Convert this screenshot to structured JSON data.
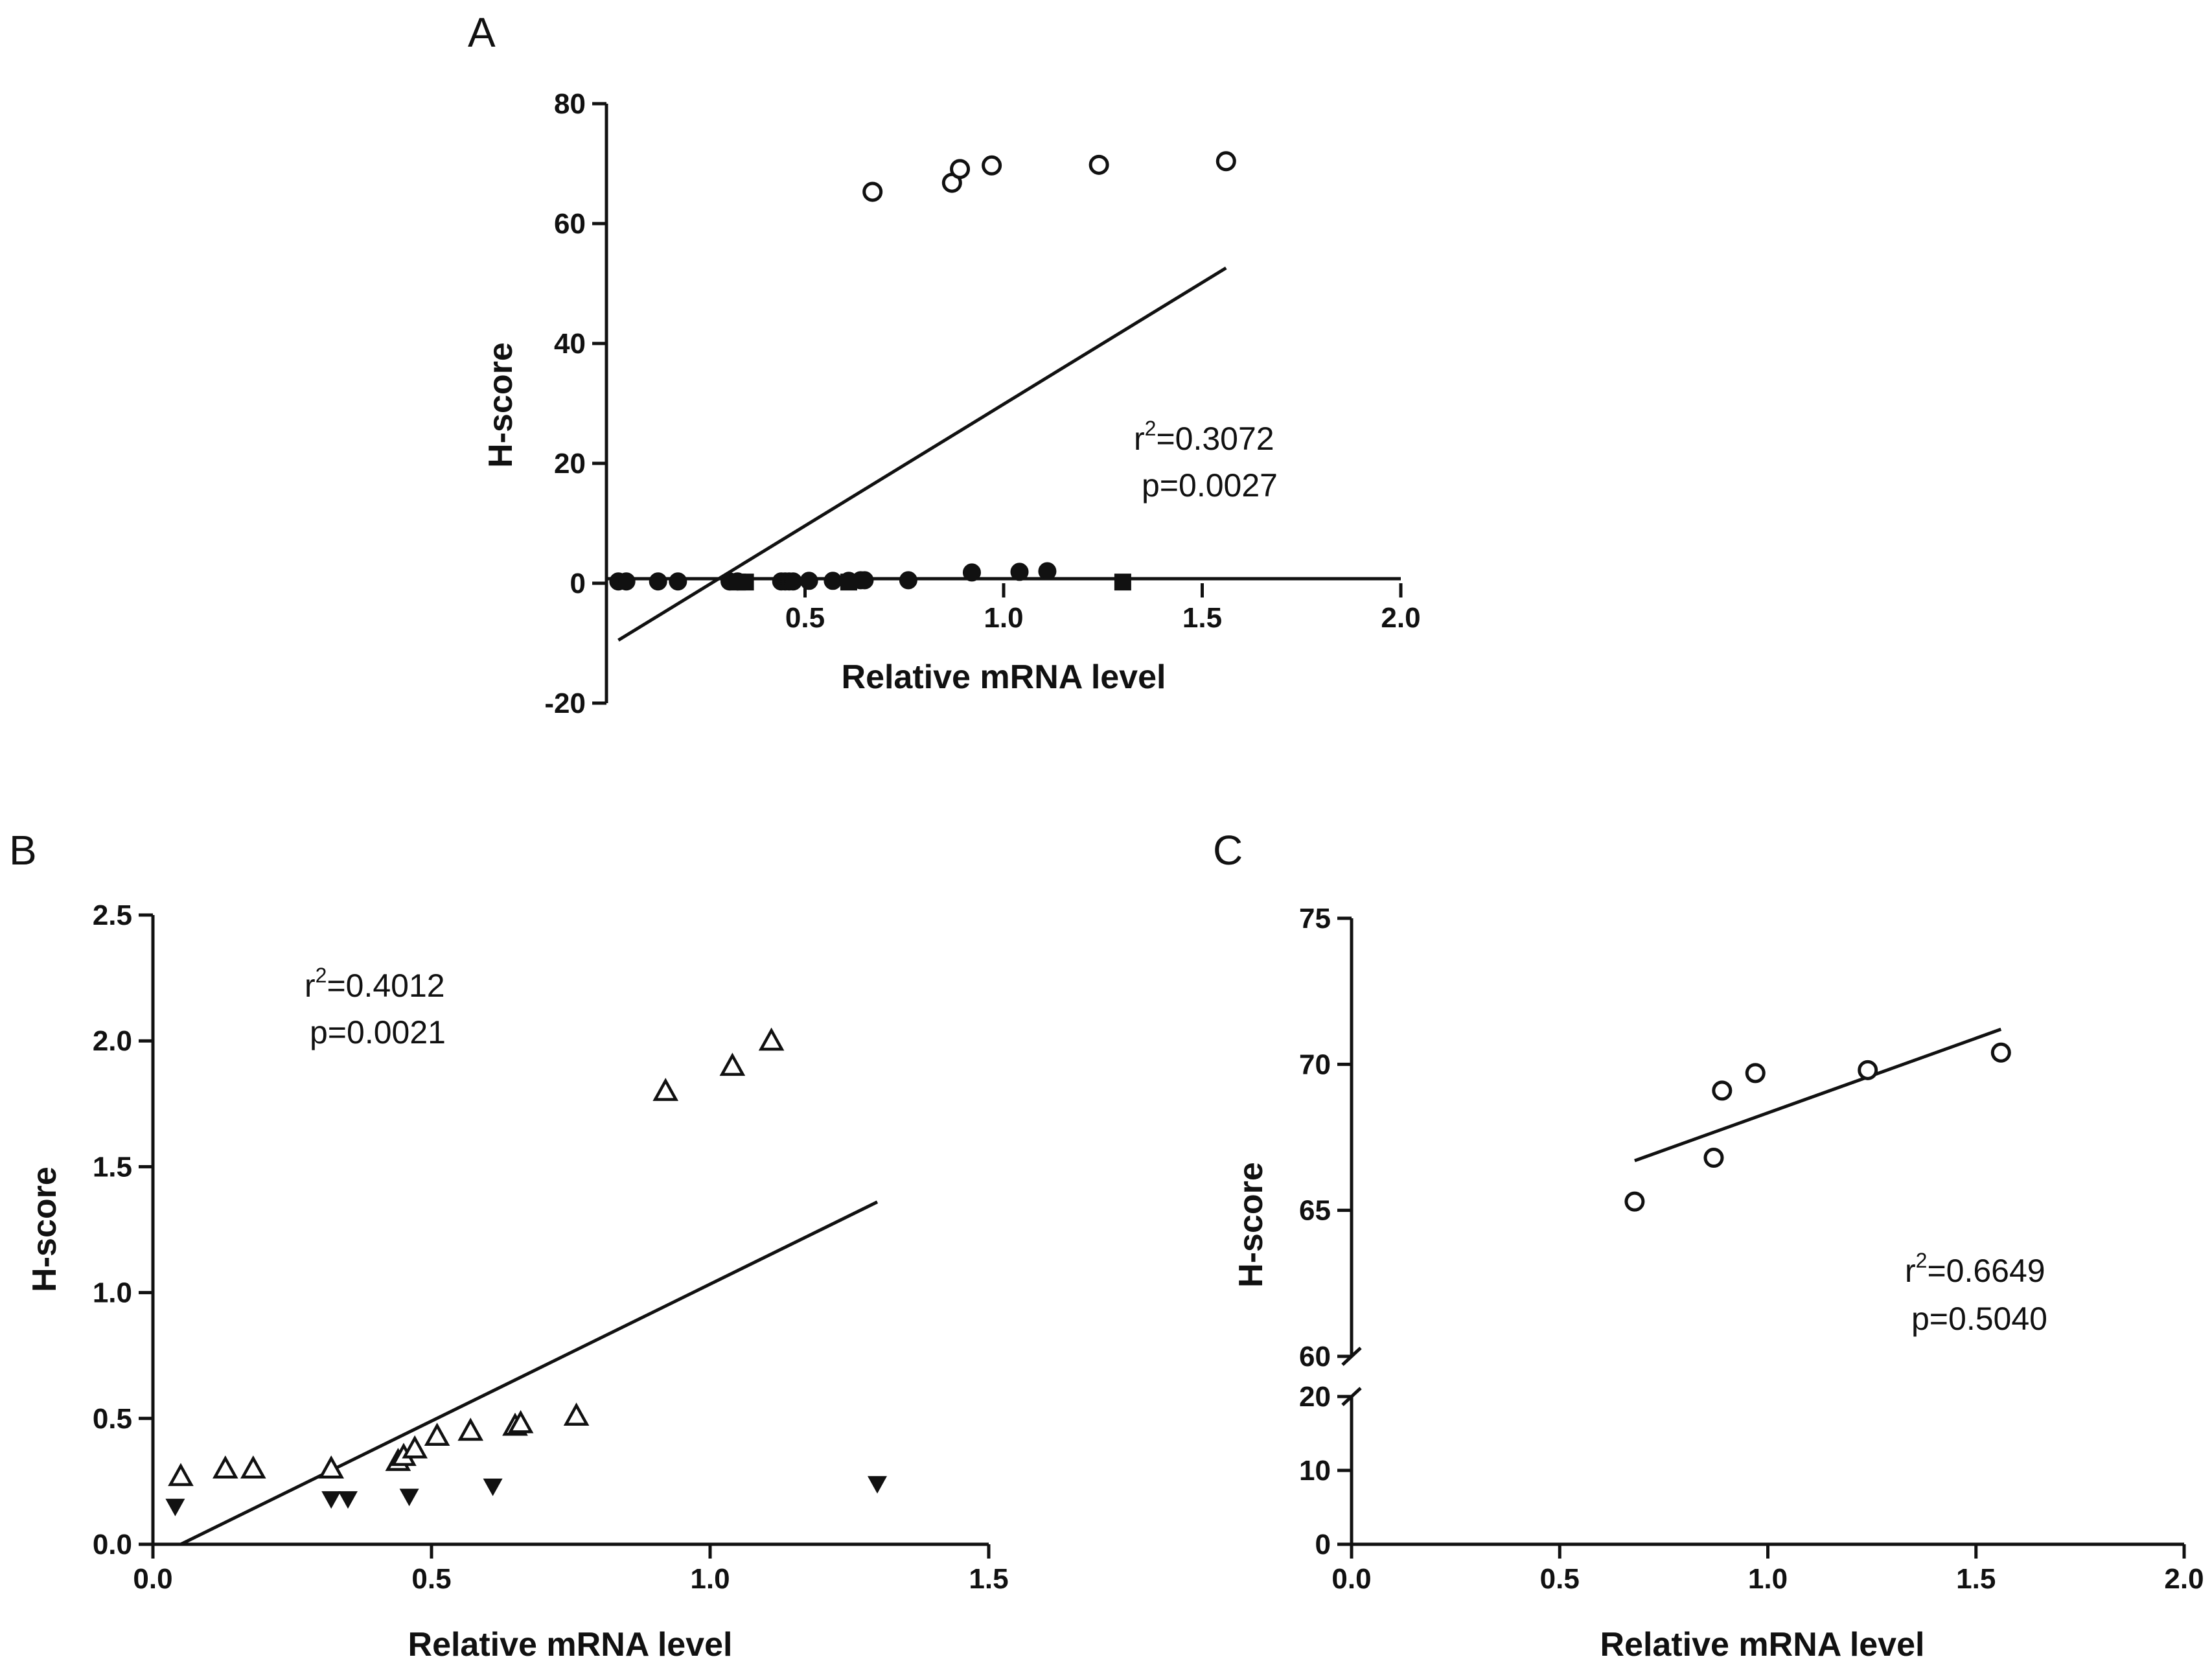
{
  "chart_data": [
    {
      "panel": "A",
      "type": "scatter",
      "xlabel": "Relative mRNA level",
      "ylabel": "H-score",
      "xlim": [
        0,
        2.0
      ],
      "ylim": [
        -20,
        80
      ],
      "xticks": [
        {
          "v": 0.5,
          "label": "0.5"
        },
        {
          "v": 1.0,
          "label": "1.0"
        },
        {
          "v": 1.5,
          "label": "1.5"
        },
        {
          "v": 2.0,
          "label": "2.0"
        }
      ],
      "yticks": [
        {
          "v": -20,
          "label": "-20"
        },
        {
          "v": 0,
          "label": "0"
        },
        {
          "v": 20,
          "label": "20"
        },
        {
          "v": 40,
          "label": "40"
        },
        {
          "v": 60,
          "label": "60"
        },
        {
          "v": 80,
          "label": "80"
        }
      ],
      "series": [
        {
          "name": "open circles",
          "marker": "open-circle",
          "x": [
            0.67,
            0.87,
            0.89,
            0.97,
            1.24,
            1.56
          ],
          "y": [
            65.3,
            66.8,
            69.1,
            69.7,
            69.8,
            70.4
          ]
        },
        {
          "name": "filled circles",
          "marker": "filled-circle",
          "x": [
            0.03,
            0.05,
            0.13,
            0.18,
            0.31,
            0.33,
            0.44,
            0.45,
            0.46,
            0.47,
            0.51,
            0.57,
            0.61,
            0.64,
            0.65,
            0.76,
            0.92,
            1.04,
            1.11
          ],
          "y": [
            0.3,
            0.3,
            0.3,
            0.3,
            0.3,
            0.3,
            0.3,
            0.3,
            0.3,
            0.3,
            0.4,
            0.4,
            0.4,
            0.5,
            0.5,
            0.5,
            1.8,
            1.9,
            2.0
          ]
        },
        {
          "name": "filled squares",
          "marker": "filled-square",
          "x": [
            0.33,
            0.35,
            0.61,
            1.3
          ],
          "y": [
            0.2,
            0.2,
            0.2,
            0.2
          ]
        }
      ],
      "fit": {
        "x": [
          0.03,
          1.56
        ],
        "y": [
          -9.5,
          52.6
        ]
      },
      "stats": {
        "r2_prefix": "r",
        "r2_sup": "2",
        "r2_value": "=0.3072",
        "p": "p=0.0027"
      }
    },
    {
      "panel": "B",
      "type": "scatter",
      "xlabel": "Relative mRNA level",
      "ylabel": "H-score",
      "xlim": [
        0,
        1.5
      ],
      "ylim": [
        0,
        2.5
      ],
      "xticks": [
        {
          "v": 0.0,
          "label": "0.0"
        },
        {
          "v": 0.5,
          "label": "0.5"
        },
        {
          "v": 1.0,
          "label": "1.0"
        },
        {
          "v": 1.5,
          "label": "1.5"
        }
      ],
      "yticks": [
        {
          "v": 0.0,
          "label": "0.0"
        },
        {
          "v": 0.5,
          "label": "0.5"
        },
        {
          "v": 1.0,
          "label": "1.0"
        },
        {
          "v": 1.5,
          "label": "1.5"
        },
        {
          "v": 2.0,
          "label": "2.0"
        },
        {
          "v": 2.5,
          "label": "2.5"
        }
      ],
      "series": [
        {
          "name": "open triangles",
          "marker": "open-triangle",
          "x": [
            0.05,
            0.13,
            0.18,
            0.32,
            0.44,
            0.45,
            0.47,
            0.51,
            0.57,
            0.65,
            0.66,
            0.76,
            0.92,
            1.04,
            1.11
          ],
          "y": [
            0.27,
            0.3,
            0.3,
            0.3,
            0.33,
            0.35,
            0.38,
            0.43,
            0.45,
            0.47,
            0.48,
            0.51,
            1.8,
            1.9,
            2.0
          ]
        },
        {
          "name": "filled triangles",
          "marker": "filled-triangle",
          "x": [
            0.04,
            0.32,
            0.35,
            0.46,
            0.61,
            1.3
          ],
          "y": [
            0.15,
            0.18,
            0.18,
            0.19,
            0.23,
            0.24
          ]
        }
      ],
      "fit": {
        "x": [
          0.05,
          1.3
        ],
        "y": [
          0.0,
          1.36
        ]
      },
      "stats": {
        "r2_prefix": "r",
        "r2_sup": "2",
        "r2_value": "=0.4012",
        "p": "p=0.0021"
      }
    },
    {
      "panel": "C",
      "type": "scatter",
      "xlabel": "Relative mRNA level",
      "ylabel": "H-score",
      "xlim": [
        0,
        2.0
      ],
      "ylim_lower": [
        0,
        20
      ],
      "ylim_upper": [
        60,
        75
      ],
      "xticks": [
        {
          "v": 0.0,
          "label": "0.0"
        },
        {
          "v": 0.5,
          "label": "0.5"
        },
        {
          "v": 1.0,
          "label": "1.0"
        },
        {
          "v": 1.5,
          "label": "1.5"
        },
        {
          "v": 2.0,
          "label": "2.0"
        }
      ],
      "yticks_upper": [
        {
          "v": 60,
          "label": "60"
        },
        {
          "v": 65,
          "label": "65"
        },
        {
          "v": 70,
          "label": "70"
        },
        {
          "v": 75,
          "label": "75"
        }
      ],
      "yticks_lower": [
        {
          "v": 0,
          "label": "0"
        },
        {
          "v": 10,
          "label": "10"
        },
        {
          "v": 20,
          "label": "20"
        }
      ],
      "series": [
        {
          "name": "open circles",
          "marker": "open-circle",
          "x": [
            0.68,
            0.87,
            0.89,
            0.97,
            1.24,
            1.56
          ],
          "y": [
            65.3,
            66.8,
            69.1,
            69.7,
            69.8,
            70.4
          ]
        }
      ],
      "fit": {
        "x": [
          0.68,
          1.56
        ],
        "y": [
          66.7,
          71.2
        ]
      },
      "stats": {
        "r2_prefix": "r",
        "r2_sup": "2",
        "r2_value": "=0.6649",
        "p": "p=0.5040"
      }
    }
  ]
}
